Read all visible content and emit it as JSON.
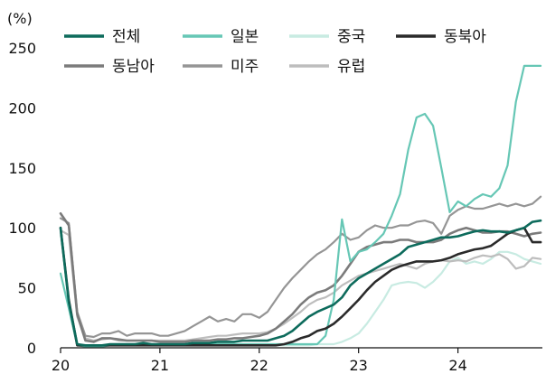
{
  "chart_data": {
    "type": "line",
    "y_unit_label": "(%)",
    "xlabel": "",
    "ylabel": "",
    "ylim": [
      0,
      250
    ],
    "yticks": [
      0,
      50,
      100,
      150,
      200,
      250
    ],
    "xlim": [
      2020.0,
      2024.85
    ],
    "xticks": [
      {
        "value": 2020,
        "label": "20"
      },
      {
        "value": 2021,
        "label": "21"
      },
      {
        "value": 2022,
        "label": "22"
      },
      {
        "value": 2023,
        "label": "23"
      },
      {
        "value": 2024,
        "label": "24"
      }
    ],
    "grid": false,
    "legend_position": "top",
    "x": [
      2020.0,
      2020.083,
      2020.167,
      2020.25,
      2020.333,
      2020.417,
      2020.5,
      2020.583,
      2020.667,
      2020.75,
      2020.833,
      2020.917,
      2021.0,
      2021.083,
      2021.167,
      2021.25,
      2021.333,
      2021.417,
      2021.5,
      2021.583,
      2021.667,
      2021.75,
      2021.833,
      2021.917,
      2022.0,
      2022.083,
      2022.167,
      2022.25,
      2022.333,
      2022.417,
      2022.5,
      2022.583,
      2022.667,
      2022.75,
      2022.833,
      2022.917,
      2023.0,
      2023.083,
      2023.167,
      2023.25,
      2023.333,
      2023.417,
      2023.5,
      2023.583,
      2023.667,
      2023.75,
      2023.833,
      2023.917,
      2024.0,
      2024.083,
      2024.167,
      2024.25,
      2024.333,
      2024.417,
      2024.5,
      2024.583,
      2024.667,
      2024.75,
      2024.833
    ],
    "series": [
      {
        "name": "전체",
        "color": "#0d6b5c",
        "width": 2.6,
        "values": [
          100,
          38,
          3,
          2,
          2,
          2,
          3,
          3,
          3,
          3,
          4,
          3,
          3,
          3,
          3,
          3,
          4,
          4,
          4,
          5,
          5,
          5,
          6,
          6,
          6,
          6,
          8,
          10,
          14,
          20,
          26,
          30,
          33,
          36,
          42,
          52,
          58,
          62,
          66,
          70,
          74,
          78,
          84,
          86,
          88,
          90,
          92,
          92,
          93,
          95,
          97,
          98,
          97,
          97,
          96,
          98,
          100,
          105,
          106
        ]
      },
      {
        "name": "일본",
        "color": "#66c7b5",
        "width": 2.2,
        "values": [
          62,
          33,
          2,
          1,
          1,
          1,
          2,
          2,
          2,
          2,
          2,
          2,
          2,
          2,
          2,
          2,
          2,
          2,
          3,
          3,
          3,
          3,
          3,
          3,
          3,
          3,
          3,
          3,
          3,
          3,
          3,
          3,
          10,
          40,
          107,
          72,
          80,
          82,
          88,
          95,
          110,
          128,
          165,
          192,
          195,
          185,
          150,
          113,
          122,
          118,
          124,
          128,
          126,
          133,
          152,
          205,
          235,
          235,
          235
        ]
      },
      {
        "name": "중국",
        "color": "#c8ebe2",
        "width": 2.2,
        "values": [
          95,
          40,
          2,
          2,
          2,
          2,
          2,
          2,
          2,
          2,
          2,
          2,
          2,
          2,
          2,
          2,
          2,
          2,
          2,
          2,
          2,
          2,
          2,
          2,
          2,
          2,
          2,
          2,
          2,
          2,
          2,
          3,
          3,
          3,
          5,
          8,
          12,
          20,
          30,
          40,
          52,
          54,
          55,
          54,
          50,
          55,
          62,
          72,
          75,
          70,
          72,
          70,
          74,
          80,
          80,
          78,
          74,
          72,
          70
        ]
      },
      {
        "name": "동북아",
        "color": "#2a2a2a",
        "width": 2.6,
        "values": [
          100,
          40,
          2,
          2,
          2,
          2,
          2,
          2,
          2,
          2,
          2,
          2,
          2,
          2,
          2,
          2,
          2,
          2,
          2,
          2,
          2,
          2,
          2,
          2,
          2,
          2,
          2,
          3,
          5,
          8,
          10,
          14,
          16,
          20,
          26,
          33,
          40,
          48,
          55,
          60,
          65,
          68,
          70,
          72,
          72,
          72,
          73,
          75,
          78,
          80,
          82,
          83,
          85,
          90,
          95,
          98,
          100,
          88,
          88
        ]
      },
      {
        "name": "동남아",
        "color": "#7b7b7b",
        "width": 2.6,
        "values": [
          112,
          102,
          28,
          6,
          5,
          8,
          8,
          7,
          6,
          6,
          6,
          6,
          5,
          5,
          5,
          5,
          6,
          6,
          6,
          7,
          7,
          8,
          8,
          9,
          10,
          12,
          16,
          22,
          28,
          36,
          42,
          46,
          48,
          52,
          60,
          70,
          80,
          84,
          86,
          88,
          88,
          90,
          90,
          88,
          88,
          88,
          90,
          95,
          98,
          100,
          98,
          96,
          96,
          97,
          97,
          95,
          93,
          95,
          96
        ]
      },
      {
        "name": "미주",
        "color": "#959595",
        "width": 2.2,
        "values": [
          108,
          104,
          30,
          10,
          9,
          12,
          12,
          14,
          10,
          12,
          12,
          12,
          10,
          10,
          12,
          14,
          18,
          22,
          26,
          22,
          24,
          22,
          28,
          28,
          25,
          30,
          40,
          50,
          58,
          65,
          72,
          78,
          82,
          88,
          95,
          90,
          92,
          98,
          102,
          100,
          100,
          102,
          102,
          105,
          106,
          104,
          95,
          110,
          115,
          118,
          116,
          116,
          118,
          120,
          118,
          120,
          118,
          120,
          126
        ]
      },
      {
        "name": "유럽",
        "color": "#bdbdbd",
        "width": 2.2,
        "values": [
          98,
          94,
          26,
          8,
          6,
          7,
          8,
          6,
          6,
          6,
          6,
          6,
          6,
          6,
          6,
          6,
          7,
          8,
          9,
          10,
          10,
          11,
          12,
          12,
          12,
          13,
          16,
          20,
          25,
          30,
          36,
          40,
          42,
          46,
          52,
          56,
          60,
          62,
          64,
          66,
          68,
          70,
          68,
          66,
          70,
          72,
          73,
          72,
          73,
          72,
          75,
          77,
          76,
          78,
          74,
          66,
          68,
          75,
          74
        ]
      }
    ]
  }
}
